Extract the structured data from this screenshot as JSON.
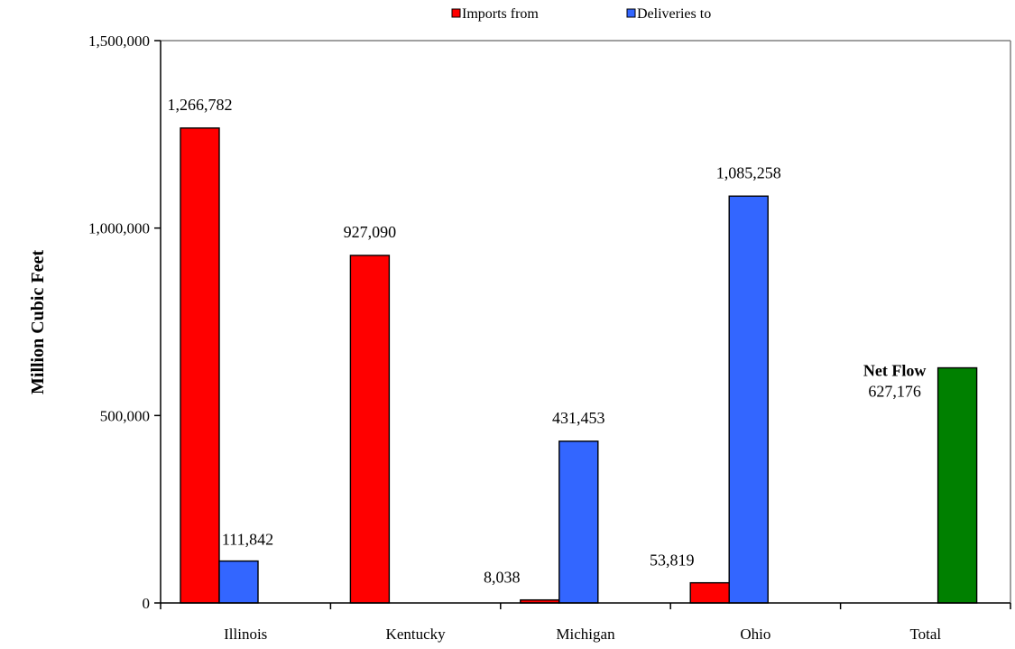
{
  "chart_data": {
    "type": "bar",
    "title": "",
    "xlabel": "",
    "ylabel": "Million Cubic Feet",
    "ylim": [
      0,
      1500000
    ],
    "yticks": [
      0,
      500000,
      1000000,
      1500000
    ],
    "ytick_labels": [
      "0",
      "500,000",
      "1,000,000",
      "1,500,000"
    ],
    "categories": [
      "Illinois",
      "Kentucky",
      "Michigan",
      "Ohio",
      "Total"
    ],
    "series": [
      {
        "name": "Imports from",
        "color": "#ff0000",
        "values": [
          1266782,
          927090,
          8038,
          53819,
          null
        ],
        "labels": [
          "1,266,782",
          "927,090",
          "8,038",
          "53,819",
          ""
        ]
      },
      {
        "name": "Deliveries to",
        "color": "#3366ff",
        "values": [
          111842,
          null,
          431453,
          1085258,
          null
        ],
        "labels": [
          "111,842",
          "",
          "431,453",
          "1,085,258",
          ""
        ]
      },
      {
        "name": "",
        "color": "#008000",
        "values": [
          null,
          null,
          null,
          null,
          627176
        ],
        "labels": [
          "",
          "",
          "",
          "",
          "627,176"
        ]
      }
    ],
    "net_flow_title": "Net Flow",
    "legend_position": "top",
    "grid": false
  }
}
